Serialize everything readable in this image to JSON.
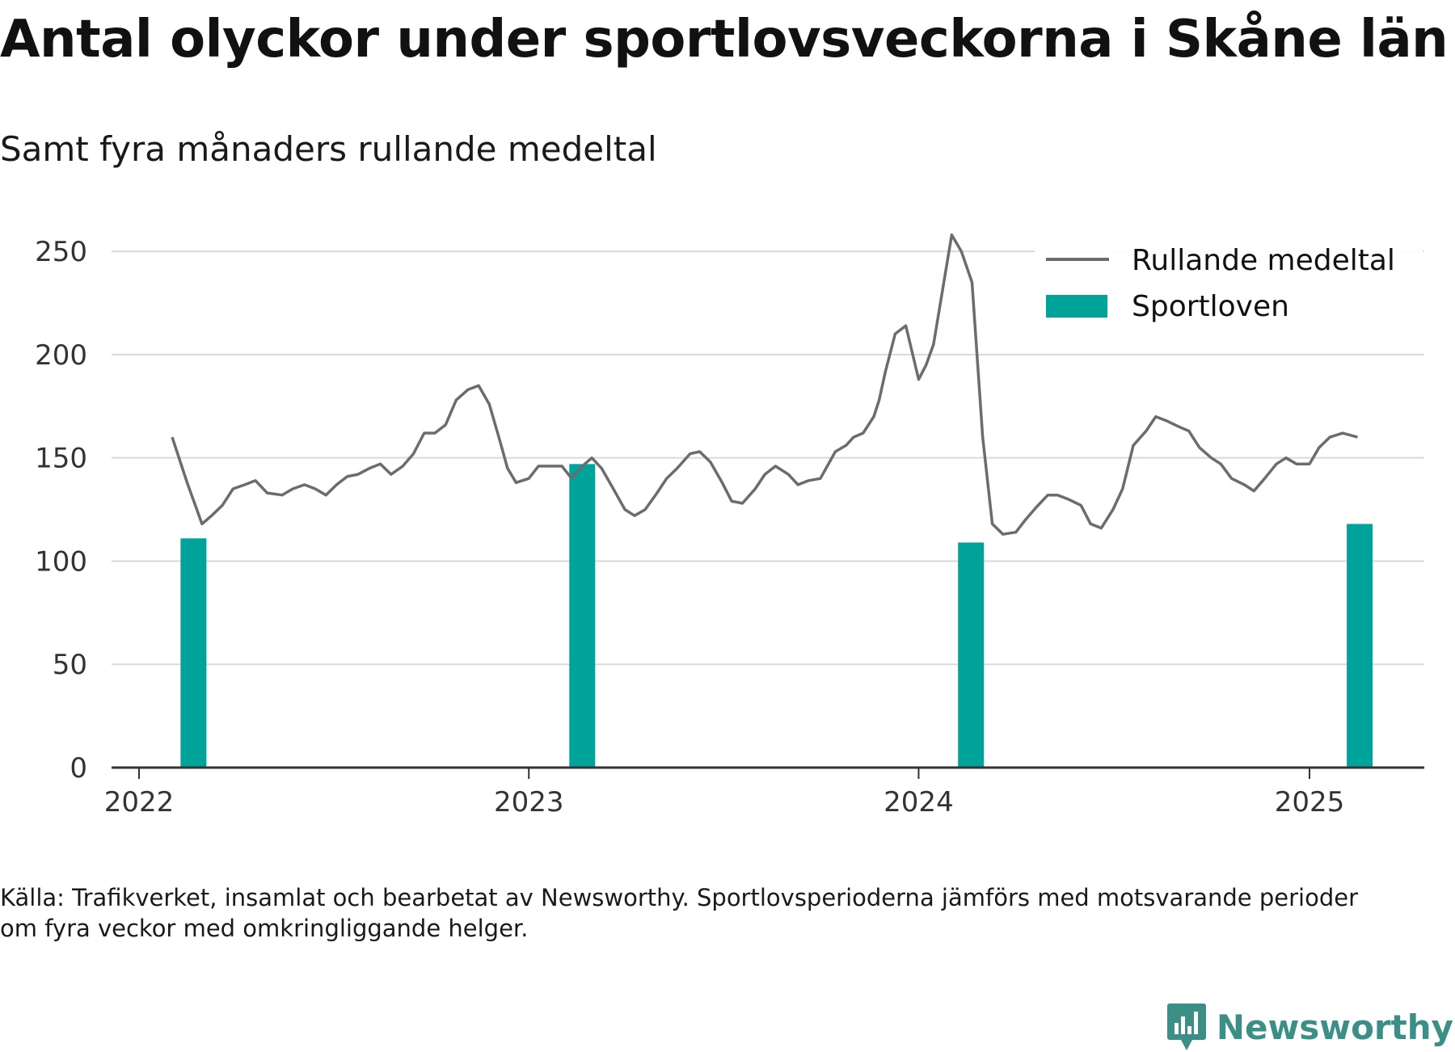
{
  "title": "Antal olyckor under sportlovsveckorna i Skåne län",
  "subtitle": "Samt fyra månaders rullande medeltal",
  "source": "Källa: Trafikverket, insamlat och bearbetat av Newsworthy. Sportlovsperioderna jämförs med motsvarande perioder om fyra veckor med omkringliggande helger.",
  "logo": {
    "text": "Newsworthy",
    "icon": "newsworthy-logo-icon",
    "color": "#3b8f86"
  },
  "chart_data": {
    "type": "bar+line",
    "title": "Antal olyckor under sportlovsveckorna i Skåne län",
    "subtitle": "Samt fyra månaders rullande medeltal",
    "xlabel": "",
    "ylabel": "",
    "ylim": [
      0,
      250
    ],
    "y_ticks": [
      0,
      50,
      100,
      150,
      200,
      250
    ],
    "x_ticks": [
      "2022",
      "2023",
      "2024",
      "2025"
    ],
    "grid": true,
    "legend_position": "top-right",
    "legend": [
      {
        "label": "Rullande medeltal",
        "kind": "line",
        "color": "#6b6b72"
      },
      {
        "label": "Sportloven",
        "kind": "bar",
        "color": "#00a39a"
      }
    ],
    "series": [
      {
        "name": "Sportloven",
        "type": "bar",
        "color": "#00a39a",
        "x": [
          "2022-02-21",
          "2023-02-20",
          "2024-02-19",
          "2025-02-17"
        ],
        "values": [
          111,
          147,
          109,
          118
        ]
      },
      {
        "name": "Rullande medeltal",
        "type": "line",
        "color": "#6b6b72",
        "x": [
          "2022-02-01",
          "2022-02-15",
          "2022-03-01",
          "2022-03-10",
          "2022-03-20",
          "2022-03-30",
          "2022-04-10",
          "2022-04-20",
          "2022-05-01",
          "2022-05-15",
          "2022-05-25",
          "2022-06-05",
          "2022-06-15",
          "2022-06-25",
          "2022-07-05",
          "2022-07-15",
          "2022-07-25",
          "2022-08-05",
          "2022-08-15",
          "2022-08-25",
          "2022-09-05",
          "2022-09-15",
          "2022-09-25",
          "2022-10-05",
          "2022-10-15",
          "2022-10-25",
          "2022-11-05",
          "2022-11-15",
          "2022-11-25",
          "2022-12-05",
          "2022-12-12",
          "2022-12-20",
          "2023-01-01",
          "2023-01-10",
          "2023-01-20",
          "2023-02-01",
          "2023-02-10",
          "2023-02-20",
          "2023-03-01",
          "2023-03-10",
          "2023-03-20",
          "2023-04-01",
          "2023-04-10",
          "2023-04-20",
          "2023-05-01",
          "2023-05-10",
          "2023-05-20",
          "2023-06-01",
          "2023-06-10",
          "2023-06-20",
          "2023-07-01",
          "2023-07-10",
          "2023-07-20",
          "2023-08-01",
          "2023-08-10",
          "2023-08-20",
          "2023-09-01",
          "2023-09-10",
          "2023-09-20",
          "2023-10-01",
          "2023-10-15",
          "2023-10-25",
          "2023-11-01",
          "2023-11-10",
          "2023-11-20",
          "2023-11-25",
          "2023-12-01",
          "2023-12-10",
          "2023-12-20",
          "2024-01-01",
          "2024-01-08",
          "2024-01-15",
          "2024-02-01",
          "2024-02-10",
          "2024-02-20",
          "2024-03-01",
          "2024-03-10",
          "2024-03-20",
          "2024-04-01",
          "2024-04-10",
          "2024-04-20",
          "2024-05-01",
          "2024-05-10",
          "2024-05-20",
          "2024-06-01",
          "2024-06-10",
          "2024-06-20",
          "2024-07-01",
          "2024-07-10",
          "2024-07-20",
          "2024-08-01",
          "2024-08-10",
          "2024-08-20",
          "2024-09-01",
          "2024-09-10",
          "2024-09-20",
          "2024-10-01",
          "2024-10-10",
          "2024-10-20",
          "2024-11-01",
          "2024-11-10",
          "2024-11-20",
          "2024-12-01",
          "2024-12-10",
          "2024-12-20",
          "2025-01-01",
          "2025-01-10",
          "2025-01-20",
          "2025-02-01",
          "2025-02-15"
        ],
        "values": [
          160,
          138,
          118,
          122,
          127,
          135,
          137,
          139,
          133,
          132,
          135,
          137,
          135,
          132,
          137,
          141,
          142,
          145,
          147,
          142,
          146,
          152,
          162,
          162,
          166,
          178,
          183,
          185,
          176,
          158,
          145,
          138,
          140,
          146,
          146,
          146,
          140,
          146,
          150,
          145,
          136,
          125,
          122,
          125,
          133,
          140,
          145,
          152,
          153,
          148,
          138,
          129,
          128,
          135,
          142,
          146,
          142,
          137,
          139,
          140,
          153,
          156,
          160,
          162,
          170,
          178,
          192,
          210,
          214,
          188,
          195,
          205,
          258,
          250,
          235,
          160,
          118,
          113,
          114,
          120,
          126,
          132,
          132,
          130,
          127,
          118,
          116,
          125,
          135,
          156,
          163,
          170,
          168,
          165,
          163,
          155,
          150,
          147,
          140,
          137,
          134,
          140,
          147,
          150,
          147,
          147,
          155,
          160,
          162,
          160
        ]
      }
    ]
  }
}
